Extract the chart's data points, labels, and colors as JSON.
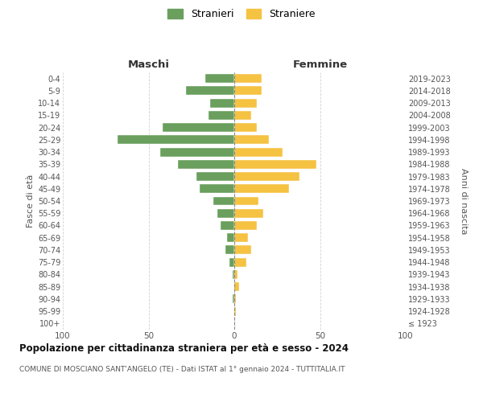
{
  "age_groups": [
    "100+",
    "95-99",
    "90-94",
    "85-89",
    "80-84",
    "75-79",
    "70-74",
    "65-69",
    "60-64",
    "55-59",
    "50-54",
    "45-49",
    "40-44",
    "35-39",
    "30-34",
    "25-29",
    "20-24",
    "15-19",
    "10-14",
    "5-9",
    "0-4"
  ],
  "birth_years": [
    "≤ 1923",
    "1924-1928",
    "1929-1933",
    "1934-1938",
    "1939-1943",
    "1944-1948",
    "1949-1953",
    "1954-1958",
    "1959-1963",
    "1964-1968",
    "1969-1973",
    "1974-1978",
    "1979-1983",
    "1984-1988",
    "1989-1993",
    "1994-1998",
    "1999-2003",
    "2004-2008",
    "2009-2013",
    "2014-2018",
    "2019-2023"
  ],
  "maschi": [
    0,
    0,
    1,
    0,
    1,
    3,
    5,
    4,
    8,
    10,
    12,
    20,
    22,
    33,
    43,
    68,
    42,
    15,
    14,
    28,
    17
  ],
  "femmine": [
    0,
    1,
    1,
    3,
    2,
    7,
    10,
    8,
    13,
    17,
    14,
    32,
    38,
    48,
    28,
    20,
    13,
    10,
    13,
    16,
    16
  ],
  "color_maschi": "#6a9f5e",
  "color_femmine": "#f5c242",
  "background_color": "#ffffff",
  "grid_color": "#cccccc",
  "title": "Popolazione per cittadinanza straniera per età e sesso - 2024",
  "subtitle": "COMUNE DI MOSCIANO SANT'ANGELO (TE) - Dati ISTAT al 1° gennaio 2024 - TUTTITALIA.IT",
  "xlabel_left": "Maschi",
  "xlabel_right": "Femmine",
  "ylabel_left": "Fasce di età",
  "ylabel_right": "Anni di nascita",
  "xlim": 100,
  "legend_stranieri": "Stranieri",
  "legend_straniere": "Straniere"
}
